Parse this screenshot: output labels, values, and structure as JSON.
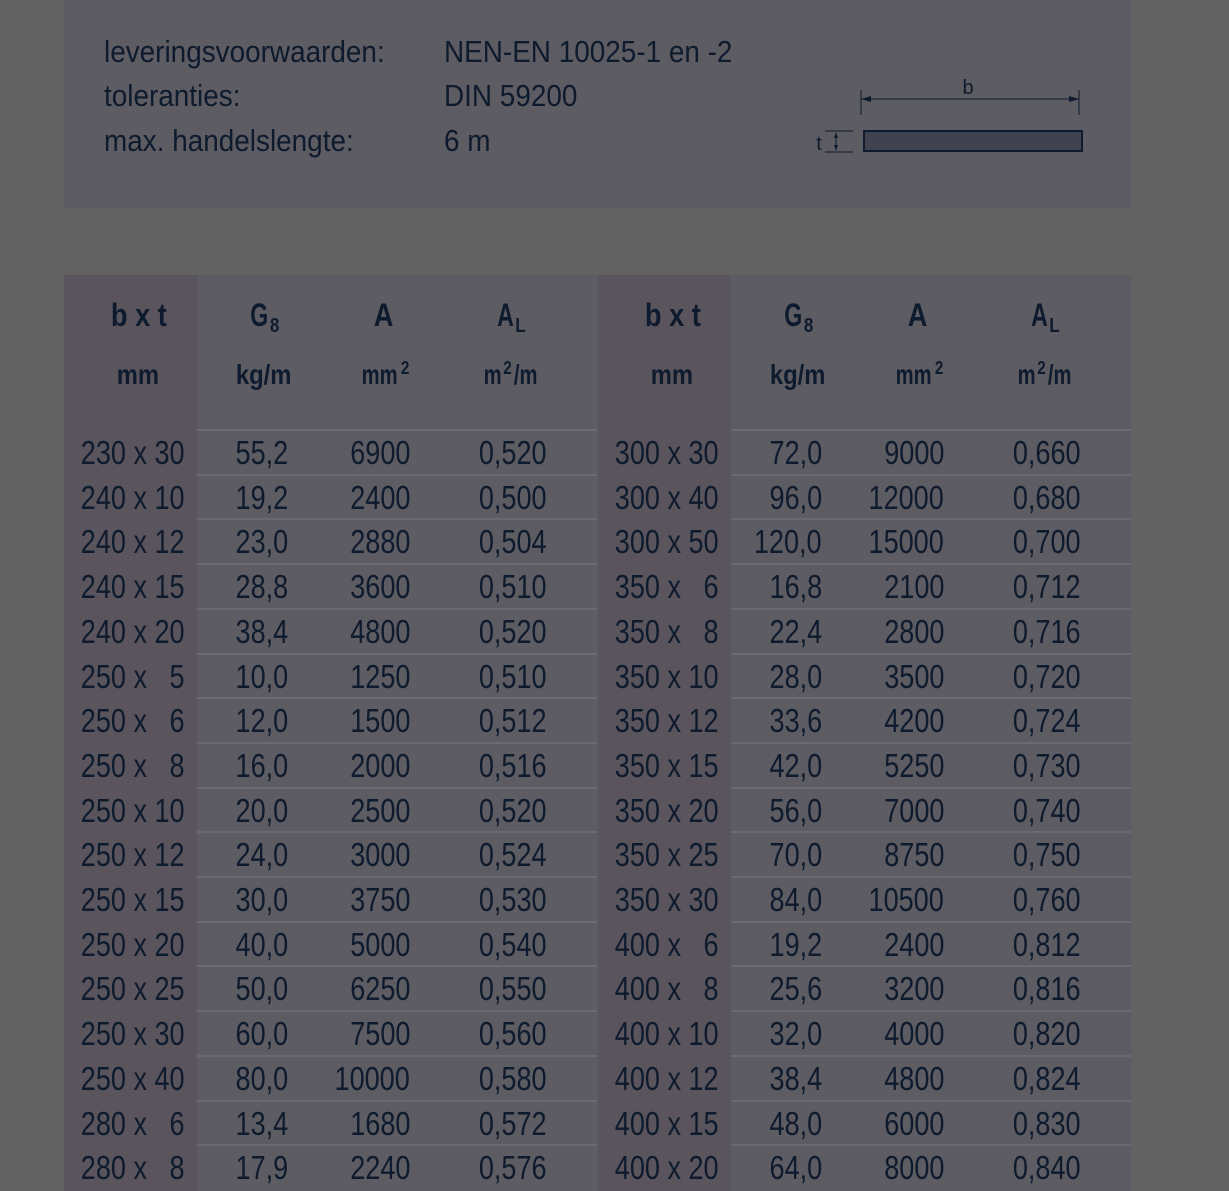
{
  "specs": [
    {
      "label": "leveringsvoorwaarden:",
      "value": "NEN-EN 10025-1 en -2"
    },
    {
      "label": "toleranties:",
      "value": "DIN 59200"
    },
    {
      "label": "max. handelslengte:",
      "value": "6 m"
    }
  ],
  "diagram": {
    "b_label": "b",
    "t_label": "t"
  },
  "headers": {
    "dim": "b  x  t",
    "g": "G",
    "g_sub": "8",
    "a": "A",
    "al": "A",
    "al_sub": "L",
    "dim_unit": "mm",
    "g_unit": "kg/m",
    "a_unit": "mm",
    "a_unit_sup": "2",
    "al_unit_pre": "m",
    "al_unit_sup": "2",
    "al_unit_post": "/m"
  },
  "left_rows": [
    [
      "230 x 30",
      "55,2",
      "6900",
      "0,520"
    ],
    [
      "240 x 10",
      "19,2",
      "2400",
      "0,500"
    ],
    [
      "240 x 12",
      "23,0",
      "2880",
      "0,504"
    ],
    [
      "240 x 15",
      "28,8",
      "3600",
      "0,510"
    ],
    [
      "240 x 20",
      "38,4",
      "4800",
      "0,520"
    ],
    [
      "250 x   5",
      "10,0",
      "1250",
      "0,510"
    ],
    [
      "250 x   6",
      "12,0",
      "1500",
      "0,512"
    ],
    [
      "250 x   8",
      "16,0",
      "2000",
      "0,516"
    ],
    [
      "250 x 10",
      "20,0",
      "2500",
      "0,520"
    ],
    [
      "250 x 12",
      "24,0",
      "3000",
      "0,524"
    ],
    [
      "250 x 15",
      "30,0",
      "3750",
      "0,530"
    ],
    [
      "250 x 20",
      "40,0",
      "5000",
      "0,540"
    ],
    [
      "250 x 25",
      "50,0",
      "6250",
      "0,550"
    ],
    [
      "250 x 30",
      "60,0",
      "7500",
      "0,560"
    ],
    [
      "250 x 40",
      "80,0",
      "10000",
      "0,580"
    ],
    [
      "280 x   6",
      "13,4",
      "1680",
      "0,572"
    ],
    [
      "280 x   8",
      "17,9",
      "2240",
      "0,576"
    ]
  ],
  "right_rows": [
    [
      "300 x 30",
      "72,0",
      "9000",
      "0,660"
    ],
    [
      "300 x 40",
      "96,0",
      "12000",
      "0,680"
    ],
    [
      "300 x 50",
      "120,0",
      "15000",
      "0,700"
    ],
    [
      "350 x   6",
      "16,8",
      "2100",
      "0,712"
    ],
    [
      "350 x   8",
      "22,4",
      "2800",
      "0,716"
    ],
    [
      "350 x 10",
      "28,0",
      "3500",
      "0,720"
    ],
    [
      "350 x 12",
      "33,6",
      "4200",
      "0,724"
    ],
    [
      "350 x 15",
      "42,0",
      "5250",
      "0,730"
    ],
    [
      "350 x 20",
      "56,0",
      "7000",
      "0,740"
    ],
    [
      "350 x 25",
      "70,0",
      "8750",
      "0,750"
    ],
    [
      "350 x 30",
      "84,0",
      "10500",
      "0,760"
    ],
    [
      "400 x   6",
      "19,2",
      "2400",
      "0,812"
    ],
    [
      "400 x   8",
      "25,6",
      "3200",
      "0,816"
    ],
    [
      "400 x 10",
      "32,0",
      "4000",
      "0,820"
    ],
    [
      "400 x 12",
      "38,4",
      "4800",
      "0,824"
    ],
    [
      "400 x 15",
      "48,0",
      "6000",
      "0,830"
    ],
    [
      "400 x 20",
      "64,0",
      "8000",
      "0,840"
    ]
  ]
}
